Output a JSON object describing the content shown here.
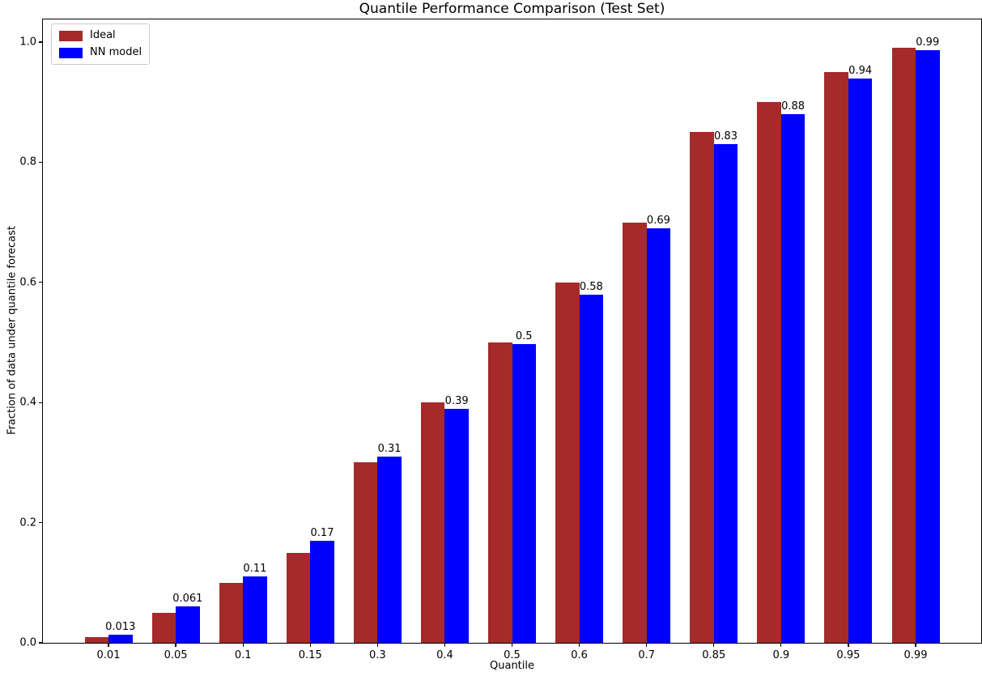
{
  "chart_data": {
    "type": "bar",
    "title": "Quantile Performance Comparison (Test Set)",
    "xlabel": "Quantile",
    "ylabel": "Fraction of data under quantile forecast",
    "categories": [
      "0.01",
      "0.05",
      "0.1",
      "0.15",
      "0.3",
      "0.4",
      "0.5",
      "0.6",
      "0.7",
      "0.85",
      "0.9",
      "0.95",
      "0.99"
    ],
    "series": [
      {
        "name": "Ideal",
        "color": "#A52A2A",
        "values": [
          0.01,
          0.05,
          0.1,
          0.15,
          0.3,
          0.4,
          0.5,
          0.6,
          0.7,
          0.85,
          0.9,
          0.95,
          0.99
        ]
      },
      {
        "name": "NN model",
        "color": "#0000FF",
        "values": [
          0.013,
          0.061,
          0.11,
          0.17,
          0.31,
          0.39,
          0.497,
          0.58,
          0.69,
          0.83,
          0.88,
          0.94,
          0.987
        ]
      }
    ],
    "bar_labels": [
      "0.013",
      "0.061",
      "0.11",
      "0.17",
      "0.31",
      "0.39",
      "0.5",
      "0.58",
      "0.69",
      "0.83",
      "0.88",
      "0.94",
      "0.99"
    ],
    "bar_labels_series": "NN model",
    "yticks": [
      0.0,
      0.2,
      0.4,
      0.6,
      0.8,
      1.0
    ],
    "ytick_labels": [
      "0.0",
      "0.2",
      "0.4",
      "0.6",
      "0.8",
      "1.0"
    ],
    "ylim": [
      0,
      1.0378
    ],
    "grid": false,
    "legend_position": "upper left",
    "background": "#ffffff",
    "text_color": "#000000"
  }
}
